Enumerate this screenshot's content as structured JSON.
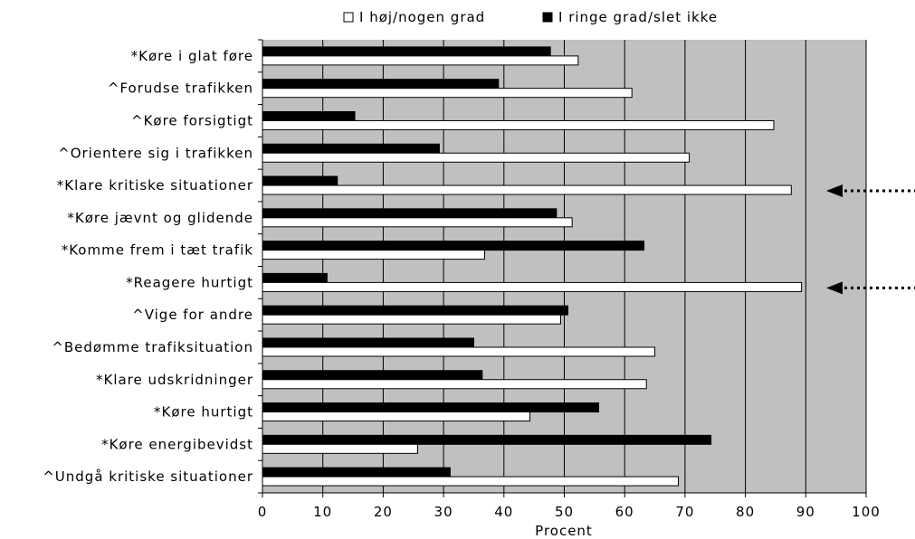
{
  "chart_data": {
    "type": "bar",
    "orientation": "horizontal",
    "title": "",
    "xlabel": "Procent",
    "ylabel": "",
    "xlim": [
      0,
      100
    ],
    "xticks": [
      0,
      10,
      20,
      30,
      40,
      50,
      60,
      70,
      80,
      90,
      100
    ],
    "grid": "vertical",
    "legend_position": "top",
    "categories": [
      "*Køre i glat føre",
      "^Forudse trafikken",
      "^Køre forsigtigt",
      "^Orientere sig i trafikken",
      "*Klare kritiske situationer",
      "*Køre jævnt og glidende",
      "*Komme frem i tæt trafik",
      "*Reagere hurtigt",
      "^Vige for andre",
      "^Bedømme trafiksituation",
      "*Klare udskridninger",
      "*Køre hurtigt",
      "*Køre energibevidst",
      "^Undgå kritiske situationer"
    ],
    "series": [
      {
        "name": "I ringe grad/slet ikke",
        "color": "#000000",
        "values": [
          47.7,
          39.1,
          15.3,
          29.3,
          12.4,
          48.7,
          63.2,
          10.7,
          50.6,
          35.0,
          36.4,
          55.7,
          74.3,
          31.1
        ]
      },
      {
        "name": "I høj/nogen grad",
        "color": "#ffffff",
        "values": [
          52.3,
          61.2,
          84.7,
          70.7,
          87.6,
          51.3,
          36.8,
          89.3,
          49.4,
          65.0,
          63.6,
          44.3,
          25.7,
          68.9
        ]
      }
    ],
    "annotations": [
      {
        "type": "dotted-arrow",
        "points_to": "*Klare kritiske situationer",
        "side": "right"
      },
      {
        "type": "dotted-arrow",
        "points_to": "*Reagere hurtigt",
        "side": "right"
      }
    ],
    "colors": {
      "plot_background": "#c0c0c0",
      "gridline": "#000000",
      "bar_outline": "#000000"
    }
  }
}
